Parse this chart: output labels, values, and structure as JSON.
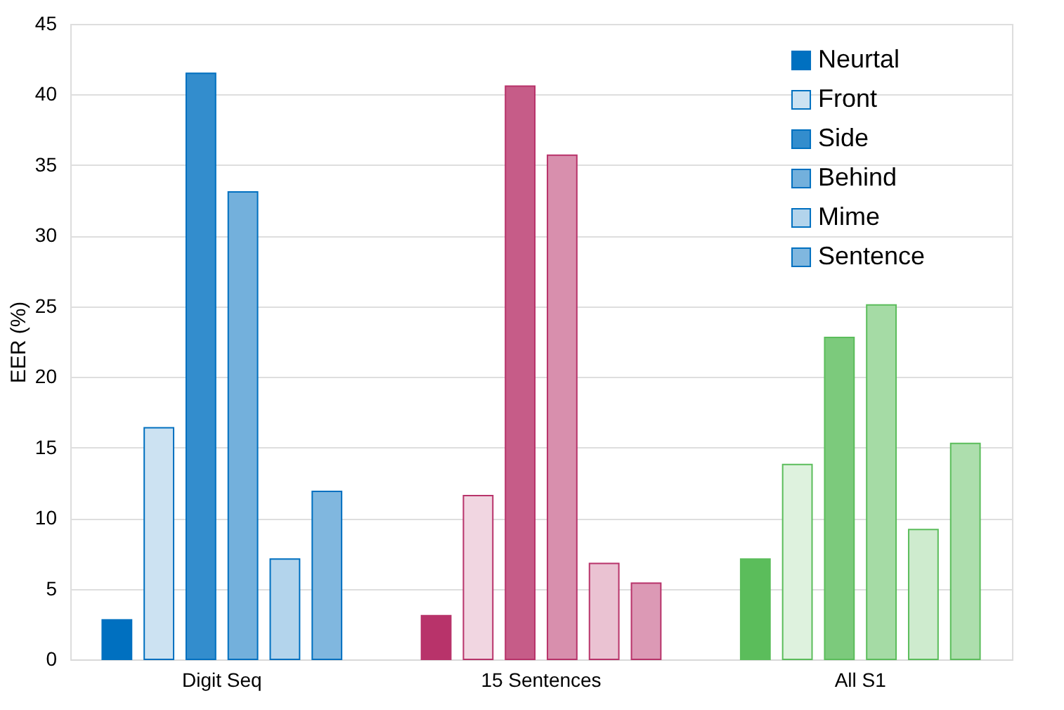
{
  "chart_data": {
    "type": "bar",
    "ylabel": "EER (%)",
    "categories": [
      "Digit Seq",
      "15 Sentences",
      "All S1"
    ],
    "series": [
      {
        "name": "Neurtal",
        "colors": [
          "#0070c0",
          "#b8336a",
          "#5bbd5b"
        ],
        "values": [
          2.8,
          3.1,
          7.1
        ]
      },
      {
        "name": "Front",
        "colors": [
          "#cce2f2",
          "#f1d6e1",
          "#def2de"
        ],
        "values": [
          16.4,
          11.6,
          13.8
        ]
      },
      {
        "name": "Side",
        "colors": [
          "#338dcd",
          "#c65c88",
          "#7cca7c"
        ],
        "values": [
          41.5,
          40.6,
          22.8
        ]
      },
      {
        "name": "Behind",
        "colors": [
          "#73b0dc",
          "#d88fad",
          "#a5dba5"
        ],
        "values": [
          33.1,
          35.7,
          25.1
        ]
      },
      {
        "name": "Mime",
        "colors": [
          "#b3d4ec",
          "#eac2d2",
          "#ceebce"
        ],
        "values": [
          7.1,
          6.8,
          9.2
        ]
      },
      {
        "name": "Sentence",
        "colors": [
          "#80b7df",
          "#dc99b5",
          "#addead"
        ],
        "values": [
          11.9,
          5.4,
          15.3
        ]
      }
    ],
    "ylim": [
      0,
      45
    ],
    "yticks": [
      0,
      5,
      10,
      15,
      20,
      25,
      30,
      35,
      40,
      45
    ],
    "grid": "y",
    "legend": "top right"
  }
}
